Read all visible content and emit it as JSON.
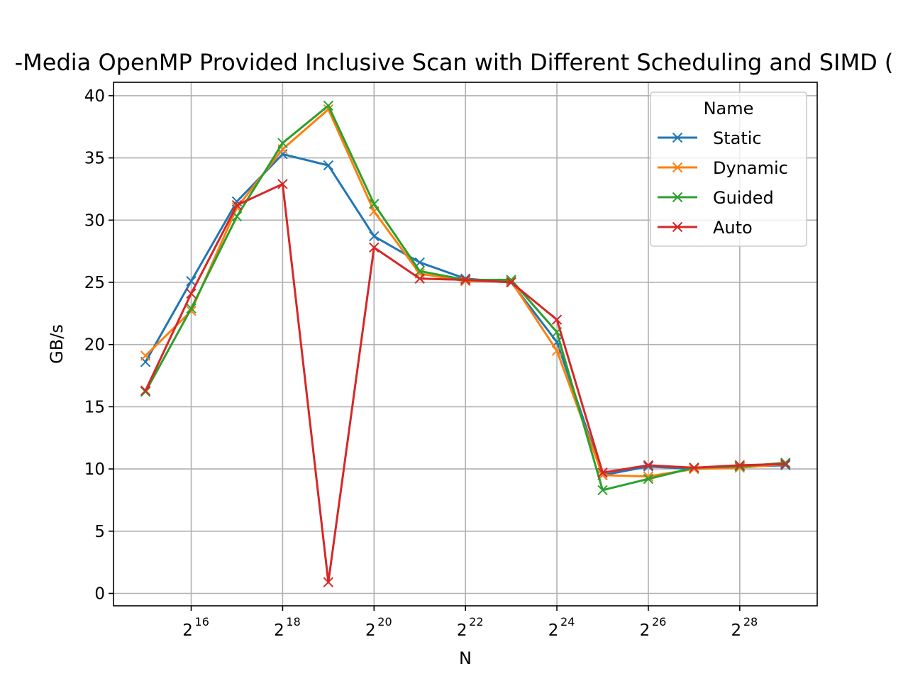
{
  "chart_data": {
    "type": "line",
    "title": "-Media OpenMP Provided Inclusive Scan with Different Scheduling and SIMD (",
    "xlabel": "N",
    "ylabel": "GB/s",
    "x_scale": "log2",
    "x": [
      32768,
      65536,
      131072,
      262144,
      524288,
      1048576,
      2097152,
      4194304,
      8388608,
      16777216,
      33554432,
      67108864,
      134217728,
      268435456,
      536870912
    ],
    "x_ticks": [
      {
        "base": "2",
        "exp": "16"
      },
      {
        "base": "2",
        "exp": "18"
      },
      {
        "base": "2",
        "exp": "20"
      },
      {
        "base": "2",
        "exp": "22"
      },
      {
        "base": "2",
        "exp": "24"
      },
      {
        "base": "2",
        "exp": "26"
      },
      {
        "base": "2",
        "exp": "28"
      }
    ],
    "y_ticks": [
      "0",
      "5",
      "10",
      "15",
      "20",
      "25",
      "30",
      "35",
      "40"
    ],
    "ylim": [
      -1,
      41
    ],
    "grid": true,
    "legend": {
      "title": "Name",
      "position": "top-right"
    },
    "marker": "x",
    "series": [
      {
        "name": "Static",
        "color": "#1f77b4",
        "values": [
          18.6,
          25.1,
          31.5,
          35.3,
          34.4,
          28.7,
          26.6,
          25.3,
          25.0,
          20.2,
          9.5,
          10.2,
          10.0,
          10.2,
          10.3
        ]
      },
      {
        "name": "Dynamic",
        "color": "#ff7f0e",
        "values": [
          19.1,
          22.7,
          31.0,
          35.7,
          38.9,
          30.7,
          25.7,
          25.1,
          25.1,
          19.5,
          9.5,
          9.4,
          10.0,
          10.1,
          10.4
        ]
      },
      {
        "name": "Guided",
        "color": "#2ca02c",
        "values": [
          16.2,
          22.9,
          30.3,
          36.2,
          39.2,
          31.3,
          25.9,
          25.2,
          25.2,
          21.0,
          8.3,
          9.2,
          10.1,
          10.2,
          10.5
        ]
      },
      {
        "name": "Auto",
        "color": "#d62728",
        "values": [
          16.3,
          24.1,
          31.2,
          32.9,
          0.9,
          27.8,
          25.3,
          25.2,
          25.0,
          22.0,
          9.7,
          10.3,
          10.1,
          10.3,
          10.4
        ]
      }
    ]
  }
}
